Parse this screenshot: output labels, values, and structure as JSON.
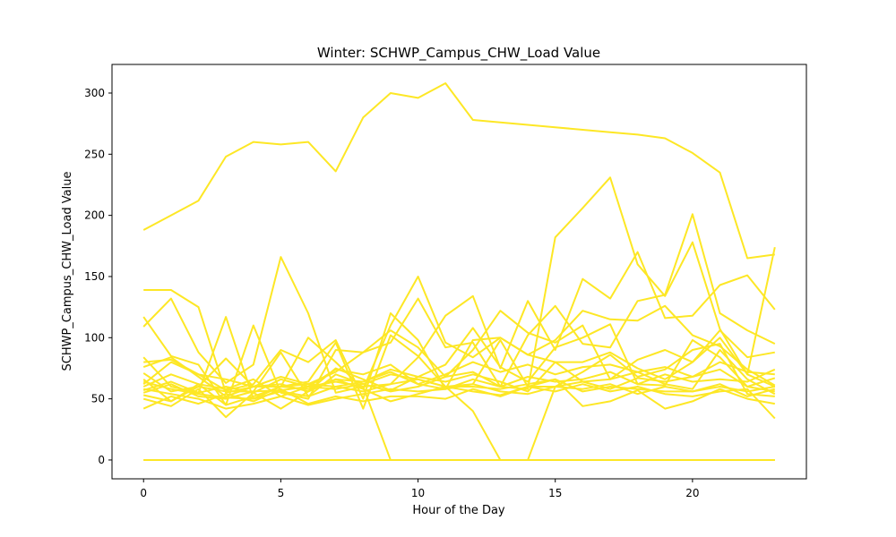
{
  "chart_data": {
    "type": "line",
    "title": "Winter: SCHWP_Campus_CHW_Load Value",
    "xlabel": "Hour of the Day",
    "ylabel": "SCHWP_Campus_CHW_Load Value",
    "xlim": [
      -1.15,
      24.15
    ],
    "ylim": [
      -15.4,
      323.4
    ],
    "xticks": [
      0,
      5,
      10,
      15,
      20
    ],
    "yticks": [
      0,
      50,
      100,
      150,
      200,
      250,
      300
    ],
    "grid": false,
    "legend": "none",
    "color": "#fde725",
    "x": [
      0,
      1,
      2,
      3,
      4,
      5,
      6,
      7,
      8,
      9,
      10,
      11,
      12,
      13,
      14,
      15,
      16,
      17,
      18,
      19,
      20,
      21,
      22,
      23
    ],
    "series": [
      {
        "values": [
          188,
          200,
          212,
          248,
          260,
          258,
          260,
          236,
          280,
          300,
          296,
          308,
          278,
          276,
          274,
          272,
          270,
          268,
          266,
          263,
          251,
          235,
          165,
          168
        ]
      },
      {
        "values": [
          139,
          139,
          125,
          55,
          60,
          68,
          62,
          72,
          88,
          96,
          132,
          92,
          96,
          60,
          102,
          126,
          95,
          92,
          130,
          135,
          201,
          120,
          106,
          95
        ]
      },
      {
        "values": [
          117,
          85,
          78,
          45,
          110,
          55,
          50,
          90,
          88,
          106,
          92,
          68,
          72,
          60,
          58,
          182,
          206,
          231,
          160,
          134,
          178,
          107,
          70,
          174
        ]
      },
      {
        "values": [
          109,
          132,
          88,
          63,
          78,
          166,
          120,
          55,
          60,
          62,
          84,
          118,
          134,
          75,
          130,
          90,
          148,
          132,
          170,
          116,
          118,
          143,
          151,
          123
        ]
      },
      {
        "values": [
          84,
          60,
          55,
          117,
          50,
          60,
          100,
          80,
          58,
          110,
          150,
          96,
          84,
          100,
          86,
          98,
          122,
          115,
          114,
          126,
          102,
          93,
          74,
          61
        ]
      },
      {
        "values": [
          80,
          82,
          70,
          57,
          62,
          90,
          80,
          98,
          50,
          120,
          98,
          58,
          98,
          100,
          86,
          80,
          80,
          88,
          75,
          66,
          80,
          100,
          70,
          60
        ]
      },
      {
        "values": [
          76,
          84,
          68,
          52,
          60,
          60,
          64,
          96,
          42,
          102,
          85,
          60,
          62,
          98,
          60,
          60,
          72,
          86,
          68,
          74,
          90,
          95,
          54,
          52
        ]
      },
      {
        "values": [
          71,
          56,
          60,
          83,
          60,
          62,
          56,
          75,
          66,
          57,
          68,
          78,
          108,
          76,
          64,
          92,
          100,
          111,
          62,
          61,
          98,
          84,
          60,
          67
        ]
      },
      {
        "values": [
          64,
          58,
          54,
          51,
          50,
          56,
          52,
          60,
          56,
          62,
          66,
          60,
          60,
          58,
          62,
          66,
          56,
          60,
          58,
          56,
          56,
          60,
          56,
          60
        ]
      },
      {
        "values": [
          60,
          70,
          62,
          45,
          52,
          60,
          58,
          66,
          64,
          74,
          68,
          64,
          70,
          64,
          56,
          80,
          64,
          58,
          67,
          64,
          68,
          74,
          60,
          56
        ]
      },
      {
        "values": [
          57,
          64,
          55,
          60,
          55,
          66,
          60,
          64,
          60,
          0,
          0,
          0,
          0,
          0,
          0,
          0,
          0,
          0,
          0,
          0,
          0,
          0,
          0,
          0
        ]
      },
      {
        "values": [
          55,
          62,
          52,
          50,
          56,
          88,
          52,
          70,
          62,
          70,
          66,
          60,
          40,
          0,
          0,
          60,
          64,
          66,
          72,
          62,
          58,
          90,
          66,
          54
        ]
      },
      {
        "values": [
          53,
          48,
          60,
          56,
          56,
          57,
          60,
          58,
          62,
          56,
          60,
          68,
          90,
          122,
          104,
          96,
          110,
          66,
          82,
          90,
          80,
          106,
          84,
          88
        ]
      },
      {
        "values": [
          50,
          44,
          58,
          35,
          55,
          42,
          56,
          66,
          58,
          48,
          54,
          60,
          56,
          53,
          60,
          66,
          44,
          48,
          57,
          42,
          48,
          58,
          50,
          46
        ]
      },
      {
        "values": [
          58,
          54,
          50,
          42,
          46,
          52,
          45,
          50,
          54,
          58,
          56,
          58,
          62,
          56,
          54,
          60,
          58,
          62,
          54,
          60,
          56,
          62,
          52,
          58
        ]
      },
      {
        "values": [
          42,
          52,
          46,
          54,
          48,
          58,
          46,
          52,
          48,
          52,
          52,
          50,
          58,
          52,
          60,
          56,
          62,
          56,
          60,
          54,
          52,
          56,
          58,
          34
        ]
      },
      {
        "values": [
          66,
          48,
          62,
          58,
          66,
          52,
          60,
          74,
          70,
          78,
          62,
          70,
          80,
          72,
          78,
          70,
          76,
          78,
          72,
          76,
          68,
          80,
          72,
          70
        ]
      },
      {
        "values": [
          62,
          80,
          70,
          66,
          60,
          60,
          62,
          60,
          64,
          72,
          62,
          58,
          66,
          60,
          68,
          64,
          66,
          72,
          62,
          70,
          64,
          66,
          64,
          74
        ]
      },
      {
        "values": [
          0,
          0,
          0,
          0,
          0,
          0,
          0,
          0,
          0,
          0,
          0,
          0,
          0,
          0,
          0,
          0,
          0,
          0,
          0,
          0,
          0,
          0,
          0,
          0
        ]
      },
      {
        "values": [
          0,
          0,
          0,
          0,
          0,
          0,
          0,
          0,
          0,
          0,
          0,
          0,
          0,
          0,
          0,
          0,
          0,
          0,
          0,
          0,
          0,
          0,
          0,
          0
        ]
      }
    ]
  }
}
